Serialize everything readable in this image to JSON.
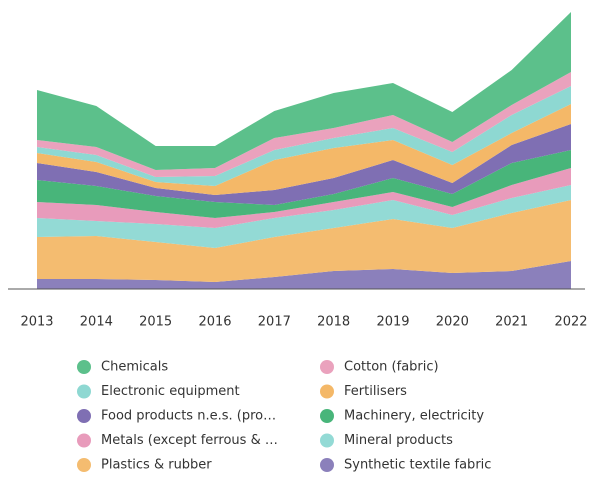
{
  "chart_data": {
    "type": "stacked_area",
    "categories": [
      "2013",
      "2014",
      "2015",
      "2016",
      "2017",
      "2018",
      "2019",
      "2020",
      "2021",
      "2022"
    ],
    "series": [
      {
        "name": "Chemicals",
        "color": "#5cc08b",
        "values": [
          50,
          41,
          24,
          22,
          27,
          35,
          32,
          30,
          35,
          60
        ]
      },
      {
        "name": "Cotton (fabric)",
        "color": "#eaa2bd",
        "values": [
          7,
          8,
          7,
          8,
          12,
          10,
          13,
          10,
          10,
          14
        ]
      },
      {
        "name": "Electronic equipment",
        "color": "#8ed8d2",
        "values": [
          6,
          7,
          5,
          10,
          10,
          10,
          12,
          13,
          18,
          18
        ]
      },
      {
        "name": "Fertilisers",
        "color": "#f4b868",
        "values": [
          10,
          10,
          6,
          9,
          30,
          30,
          20,
          18,
          12,
          20
        ]
      },
      {
        "name": "Food products n.e.s. (pro…",
        "color": "#7f6fb3",
        "values": [
          17,
          14,
          8,
          7,
          15,
          16,
          18,
          11,
          18,
          26
        ]
      },
      {
        "name": "Machinery, electricity",
        "color": "#48b57a",
        "values": [
          22,
          19,
          16,
          16,
          7,
          8,
          14,
          13,
          22,
          18
        ]
      },
      {
        "name": "Metals (except ferrous & …",
        "color": "#e89bbb",
        "values": [
          16,
          16,
          12,
          10,
          6,
          8,
          8,
          8,
          13,
          17
        ]
      },
      {
        "name": "Mineral products",
        "color": "#93dad5",
        "values": [
          19,
          15,
          18,
          20,
          19,
          18,
          19,
          13,
          15,
          15
        ]
      },
      {
        "name": "Plastics & rubber",
        "color": "#f4bc70",
        "values": [
          42,
          43,
          38,
          34,
          40,
          43,
          50,
          45,
          58,
          61
        ]
      },
      {
        "name": "Synthetic textile fabric",
        "color": "#8b80bb",
        "values": [
          10,
          10,
          9,
          7,
          12,
          18,
          20,
          16,
          18,
          28
        ]
      }
    ]
  }
}
